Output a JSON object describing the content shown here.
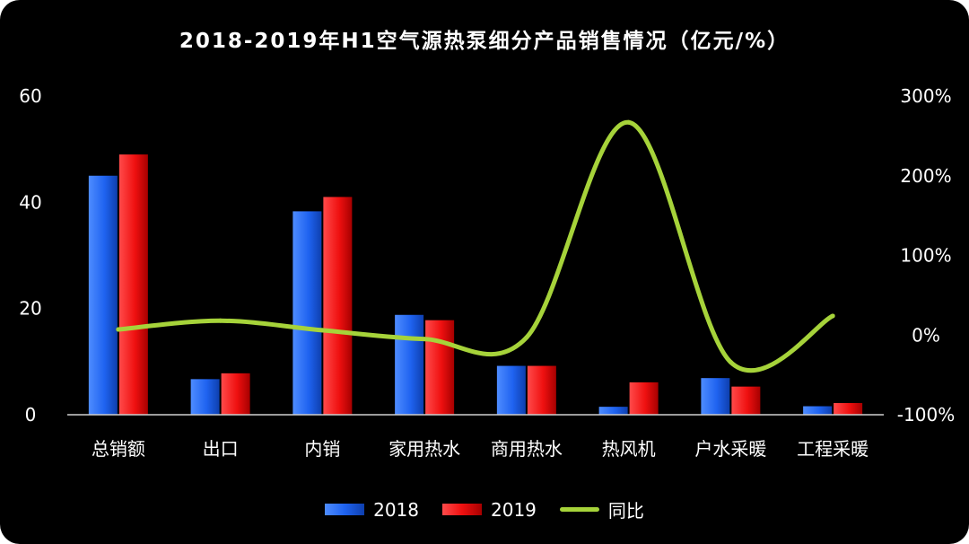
{
  "title": "2018-2019年H1空气源热泵细分产品销售情况（亿元/%）",
  "colors": {
    "background": "#000000",
    "s2018": "#1f63f0",
    "s2019": "#ef1010",
    "yoy": "#a6d33a",
    "text": "#ffffff",
    "axis": "#cfcfcf"
  },
  "chart_data": {
    "type": "bar",
    "categories": [
      "总销额",
      "出口",
      "内销",
      "家用热水",
      "商用热水",
      "热风机",
      "户水采暖",
      "工程采暖"
    ],
    "series": [
      {
        "name": "2018",
        "type": "bar",
        "axis": "left",
        "values": [
          45.0,
          6.7,
          38.3,
          18.8,
          9.2,
          1.5,
          6.9,
          1.6
        ]
      },
      {
        "name": "2019",
        "type": "bar",
        "axis": "left",
        "values": [
          49.0,
          7.8,
          41.0,
          17.8,
          9.2,
          6.1,
          5.3,
          2.2
        ]
      },
      {
        "name": "同比",
        "type": "line",
        "axis": "right",
        "values": [
          0.07,
          0.18,
          0.06,
          -0.05,
          -0.03,
          2.67,
          -0.34,
          0.24
        ]
      }
    ],
    "ylim_left": [
      0,
      60
    ],
    "yticks_left": [
      0,
      20,
      40,
      60
    ],
    "ytick_labels_left": [
      "0",
      "20",
      "40",
      "60"
    ],
    "ylim_right": [
      -1,
      3
    ],
    "yticks_right": [
      -1,
      0,
      1,
      2,
      3
    ],
    "ytick_labels_right": [
      "-100%",
      "0%",
      "100%",
      "200%",
      "300%"
    ],
    "grid": false,
    "legend_position": "bottom"
  }
}
